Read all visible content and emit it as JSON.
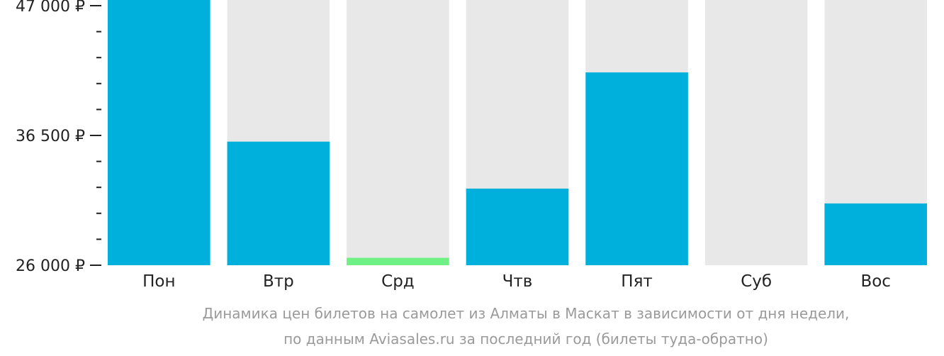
{
  "chart_data": {
    "type": "bar",
    "categories": [
      "Пон",
      "Втр",
      "Срд",
      "Чтв",
      "Пят",
      "Суб",
      "Вос"
    ],
    "values": [
      47000,
      36000,
      26600,
      32200,
      41600,
      null,
      31000
    ],
    "highlight_index": 2,
    "ylim": [
      26000,
      47000
    ],
    "yticks": [
      {
        "value": 26000,
        "label": "26 000 ₽"
      },
      {
        "value": 36500,
        "label": "36 500 ₽"
      },
      {
        "value": 47000,
        "label": "47 000 ₽"
      }
    ],
    "minor_tick_step": 2100,
    "grid": false,
    "colors": {
      "bar": "#00b0dc",
      "highlight": "#6ff085",
      "background_bar": "#e8e8e8",
      "axis": "#222222"
    }
  },
  "caption": {
    "line1": "Динамика цен билетов на самолет из Алматы в Маскат в зависимости от дня недели,",
    "line2": "по данным Aviasales.ru за последний год (билеты туда-обратно)"
  }
}
